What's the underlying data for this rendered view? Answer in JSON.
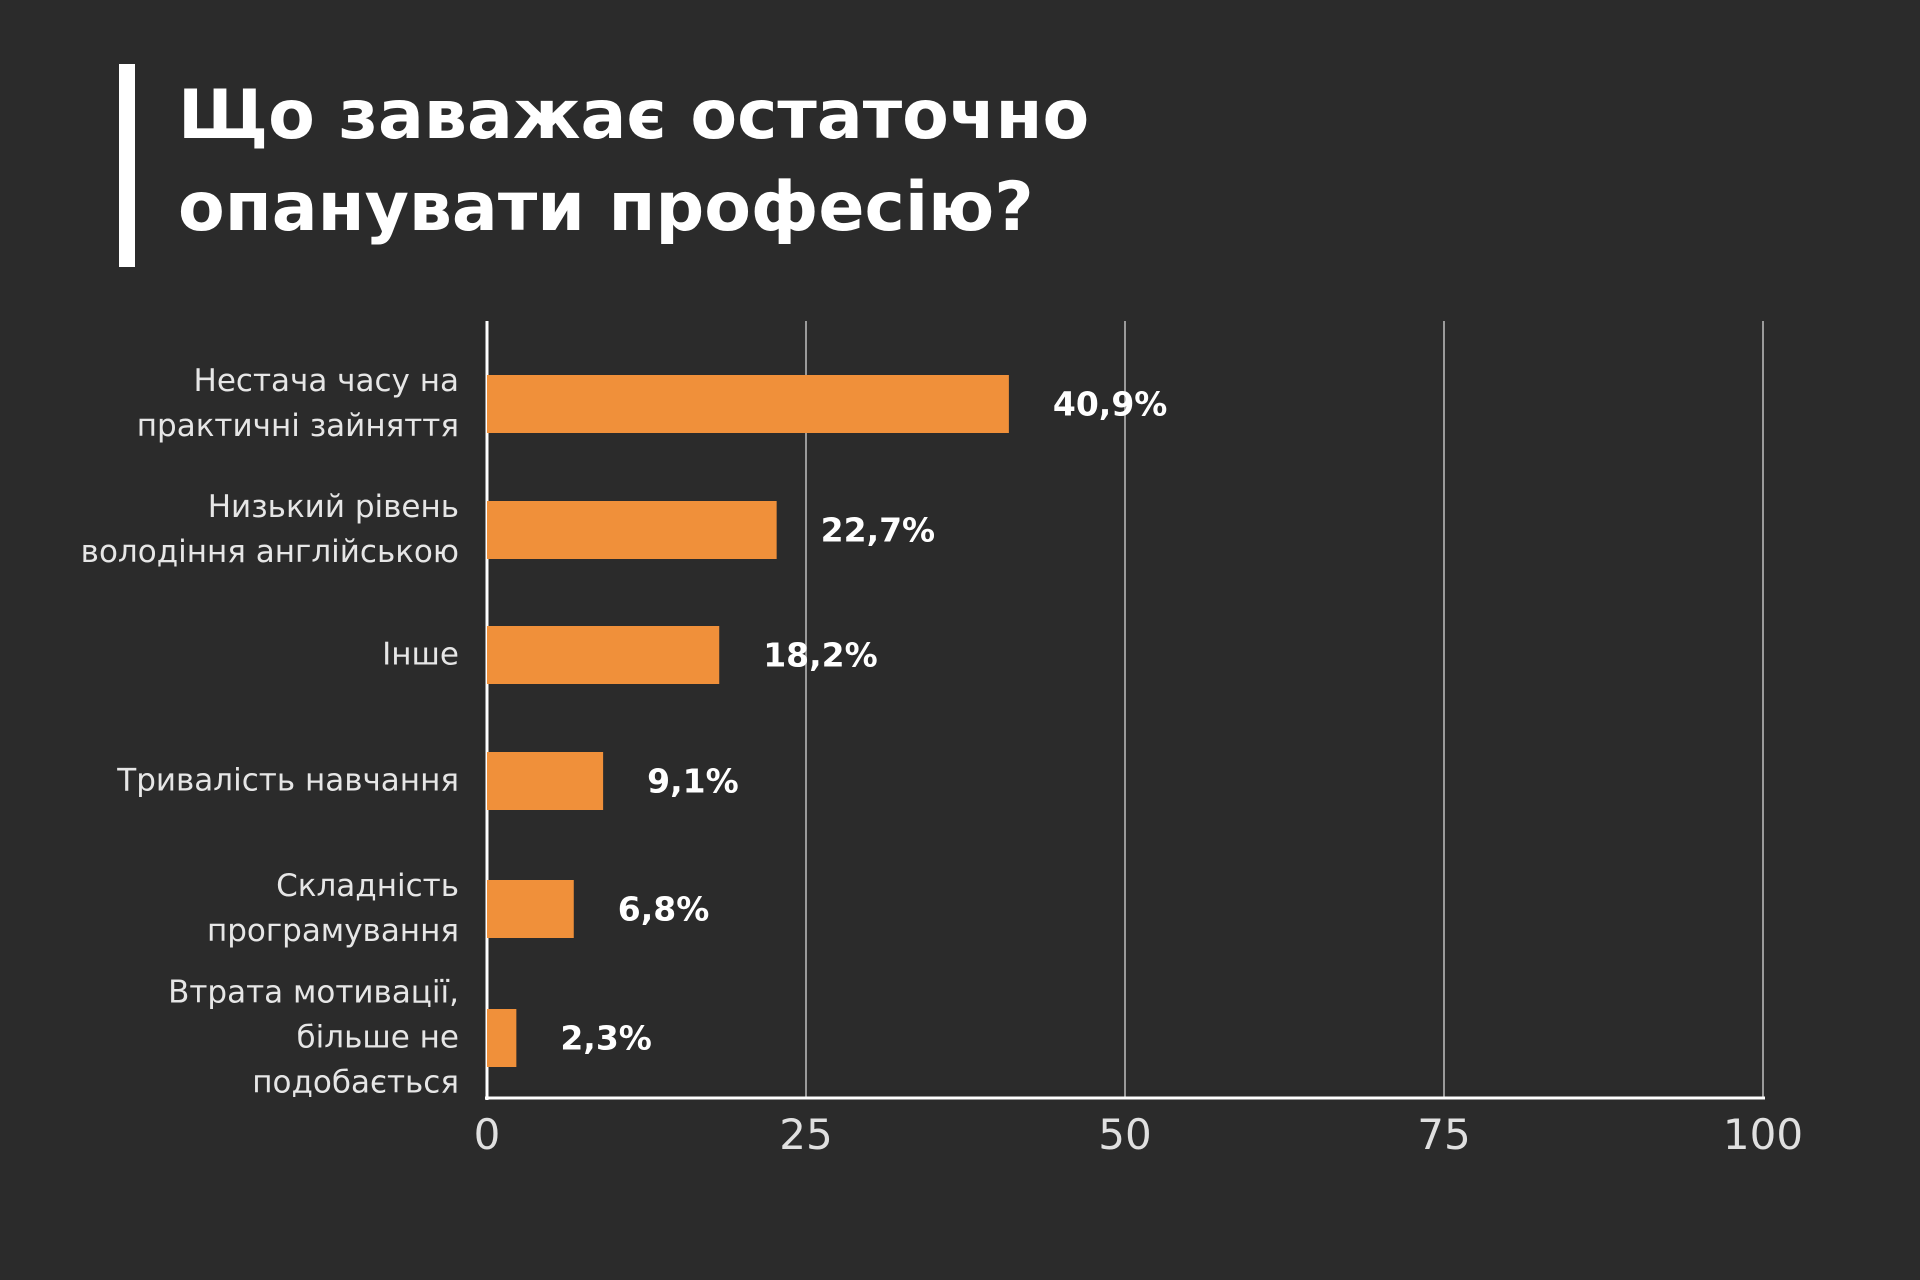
{
  "chart_data": {
    "type": "bar",
    "orientation": "horizontal",
    "title": "Що заважає остаточно\nопанувати професію?",
    "categories": [
      "Нестача часу на\nпрактичні зайняття",
      "Низький рівень\nволодіння англійською",
      "Інше",
      "Тривалість навчання",
      "Складність\nпрограмування",
      "Втрата мотивації,\nбільше не\nподобається"
    ],
    "values": [
      40.9,
      22.7,
      18.2,
      9.1,
      6.8,
      2.3
    ],
    "value_labels": [
      "40,9%",
      "22,7%",
      "18,2%",
      "9,1%",
      "6,8%",
      "2,3%"
    ],
    "color": "#f0903a",
    "xlim": [
      0,
      100
    ],
    "xticks": [
      0,
      25,
      50,
      75,
      100
    ],
    "grid": true
  }
}
